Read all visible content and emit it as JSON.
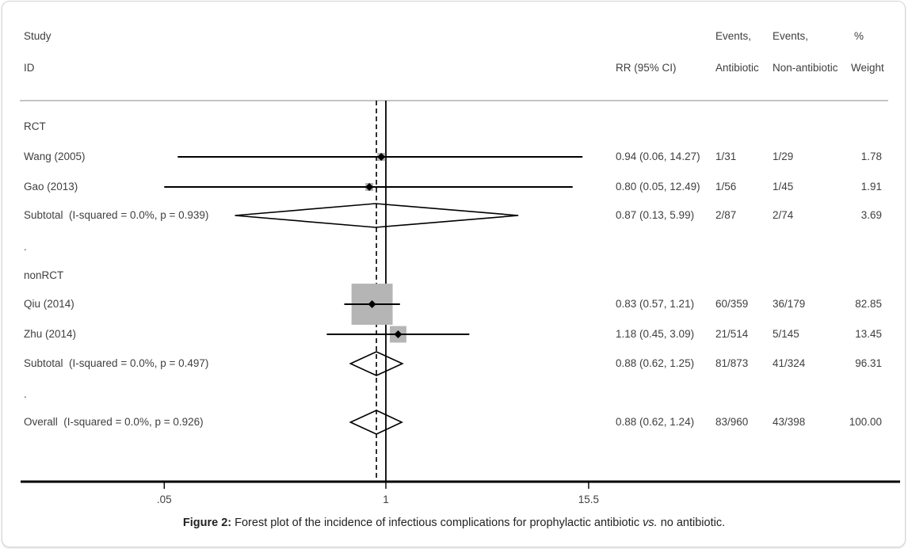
{
  "figure": {
    "caption_label": "Figure 2:",
    "caption_text": "Forest plot of the incidence of infectious complications for prophylactic antibiotic",
    "caption_italic": "vs.",
    "caption_end": "no antibiotic."
  },
  "header": {
    "study_line1": "Study",
    "study_line2": "ID",
    "rr": "RR (95% CI)",
    "events_antibiotic_line1": "Events,",
    "events_antibiotic_line2": "Antibiotic",
    "events_nonantibiotic_line1": "Events,",
    "events_nonantibiotic_line2": "Non-antibiotic",
    "weight_line1": "%",
    "weight_line2": "Weight"
  },
  "chart_data": {
    "type": "forest",
    "x_scale": "log",
    "effect_measure": "RR",
    "null_line": 1,
    "overall_estimate_line": 0.88,
    "axis_ticks": [
      0.05,
      1,
      15.5
    ],
    "axis_tick_labels": [
      ".05",
      "1",
      "15.5"
    ],
    "colors": {
      "weight_box": "#b5b5b5",
      "line": "#000000",
      "header_rule": "#a0a0a0",
      "text": "#3f3f3f",
      "card_border": "#d6d6d6"
    },
    "rows": [
      {
        "type": "group",
        "label": "RCT"
      },
      {
        "type": "study",
        "label": "Wang (2005)",
        "rr_text": "0.94 (0.06, 14.27)",
        "est": 0.94,
        "lo": 0.06,
        "hi": 14.27,
        "events_antibiotic": "1/31",
        "events_nonantibiotic": "1/29",
        "weight": "1.78",
        "weight_pct": 1.78
      },
      {
        "type": "study",
        "label": "Gao (2013)",
        "rr_text": "0.80 (0.05, 12.49)",
        "est": 0.8,
        "lo": 0.05,
        "hi": 12.49,
        "events_antibiotic": "1/56",
        "events_nonantibiotic": "1/45",
        "weight": "1.91",
        "weight_pct": 1.91
      },
      {
        "type": "subtotal",
        "label": "Subtotal  (I-squared = 0.0%, p = 0.939)",
        "rr_text": "0.87 (0.13, 5.99)",
        "est": 0.87,
        "lo": 0.13,
        "hi": 5.99,
        "events_antibiotic": "2/87",
        "events_nonantibiotic": "2/74",
        "weight": "3.69"
      },
      {
        "type": "dot",
        "label": "."
      },
      {
        "type": "group",
        "label": "nonRCT"
      },
      {
        "type": "study",
        "label": "Qiu (2014)",
        "rr_text": "0.83 (0.57, 1.21)",
        "est": 0.83,
        "lo": 0.57,
        "hi": 1.21,
        "events_antibiotic": "60/359",
        "events_nonantibiotic": "36/179",
        "weight": "82.85",
        "weight_pct": 82.85
      },
      {
        "type": "study",
        "label": "Zhu (2014)",
        "rr_text": "1.18 (0.45, 3.09)",
        "est": 1.18,
        "lo": 0.45,
        "hi": 3.09,
        "events_antibiotic": "21/514",
        "events_nonantibiotic": "5/145",
        "weight": "13.45",
        "weight_pct": 13.45
      },
      {
        "type": "subtotal",
        "label": "Subtotal  (I-squared = 0.0%, p = 0.497)",
        "rr_text": "0.88 (0.62, 1.25)",
        "est": 0.88,
        "lo": 0.62,
        "hi": 1.25,
        "events_antibiotic": "81/873",
        "events_nonantibiotic": "41/324",
        "weight": "96.31"
      },
      {
        "type": "dot",
        "label": "."
      },
      {
        "type": "overall",
        "label": "Overall  (I-squared = 0.0%, p = 0.926)",
        "rr_text": "0.88 (0.62, 1.24)",
        "est": 0.88,
        "lo": 0.62,
        "hi": 1.24,
        "events_antibiotic": "83/960",
        "events_nonantibiotic": "43/398",
        "weight": "100.00"
      }
    ]
  }
}
